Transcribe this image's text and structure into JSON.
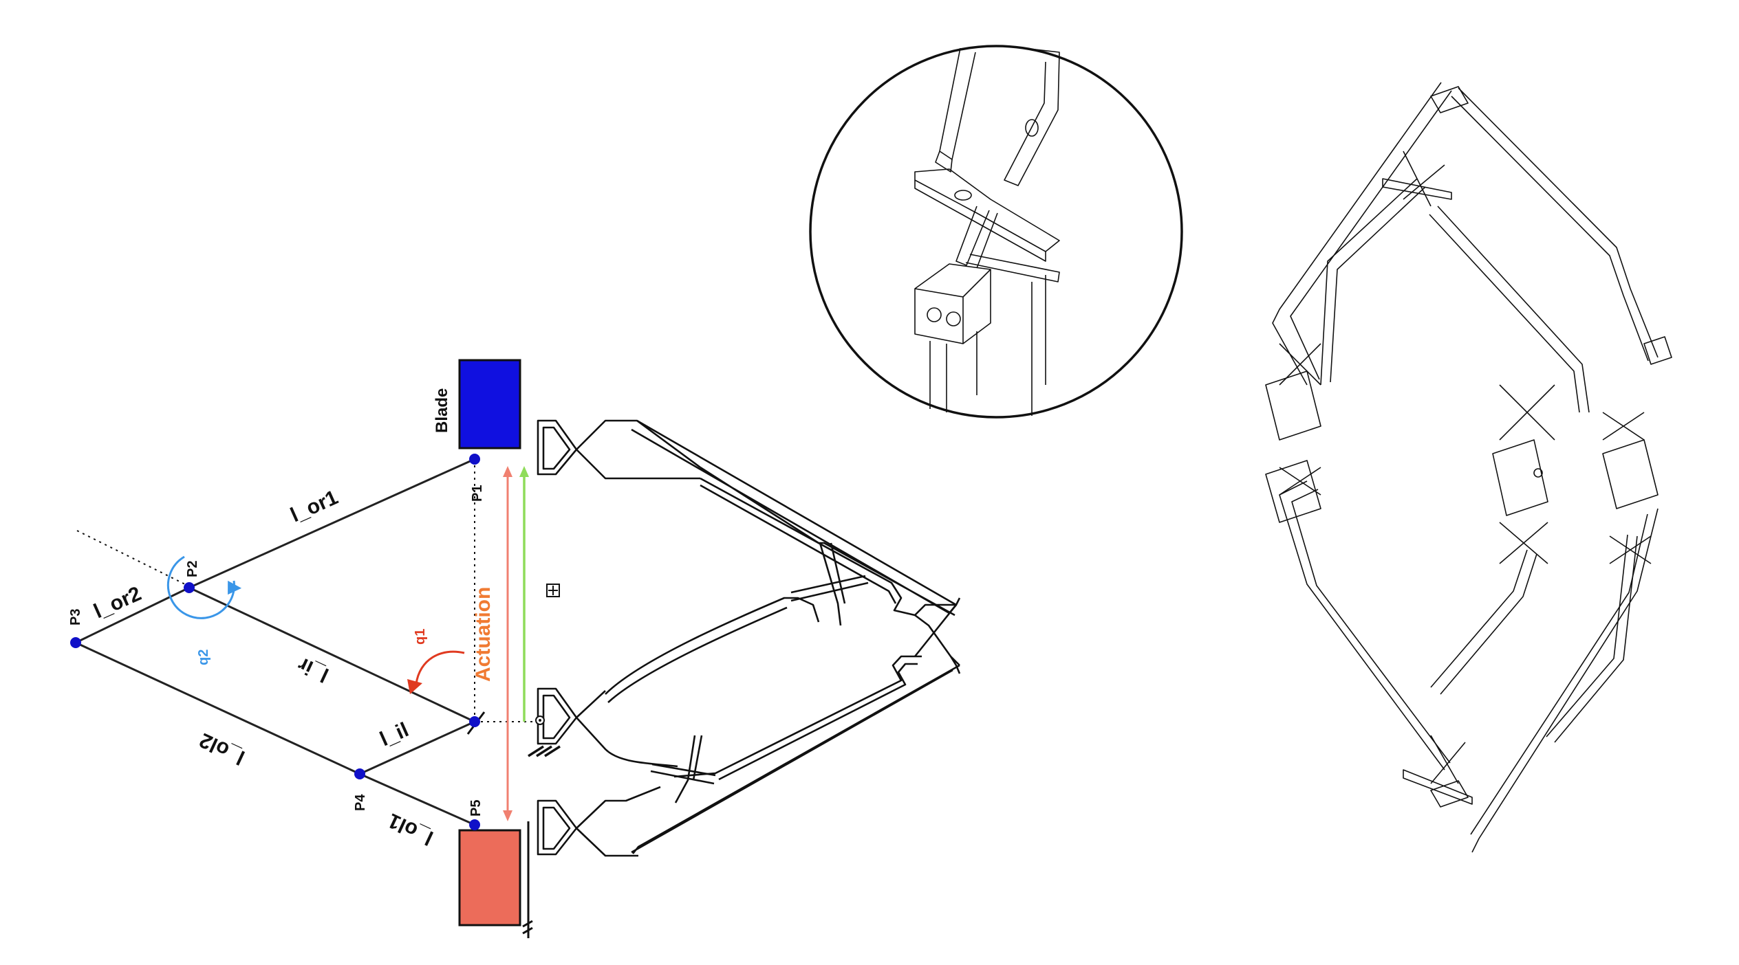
{
  "colors": {
    "joint": "#1010c8",
    "blade": "#1010e0",
    "base_block": "#ec6c5a",
    "actuation_arrow": "#f08070",
    "actuation_text": "#f07a32",
    "output_arrow": "#8fdc5a",
    "angle_q1": "#e03a20",
    "angle_q2": "#3a96e8"
  },
  "labels": {
    "blade": "Blade",
    "actuation": "Actuation",
    "p1": "P1",
    "p2": "P2",
    "p3": "P3",
    "p4": "P4",
    "p5": "P5",
    "l_or1": "l_or1",
    "l_or2": "l_or2",
    "l_ir": "l_ir",
    "l_il": "l_il",
    "l_ol2": "l_ol2",
    "l_ol1": "l_ol1",
    "q1": "q1",
    "q2": "q2"
  }
}
